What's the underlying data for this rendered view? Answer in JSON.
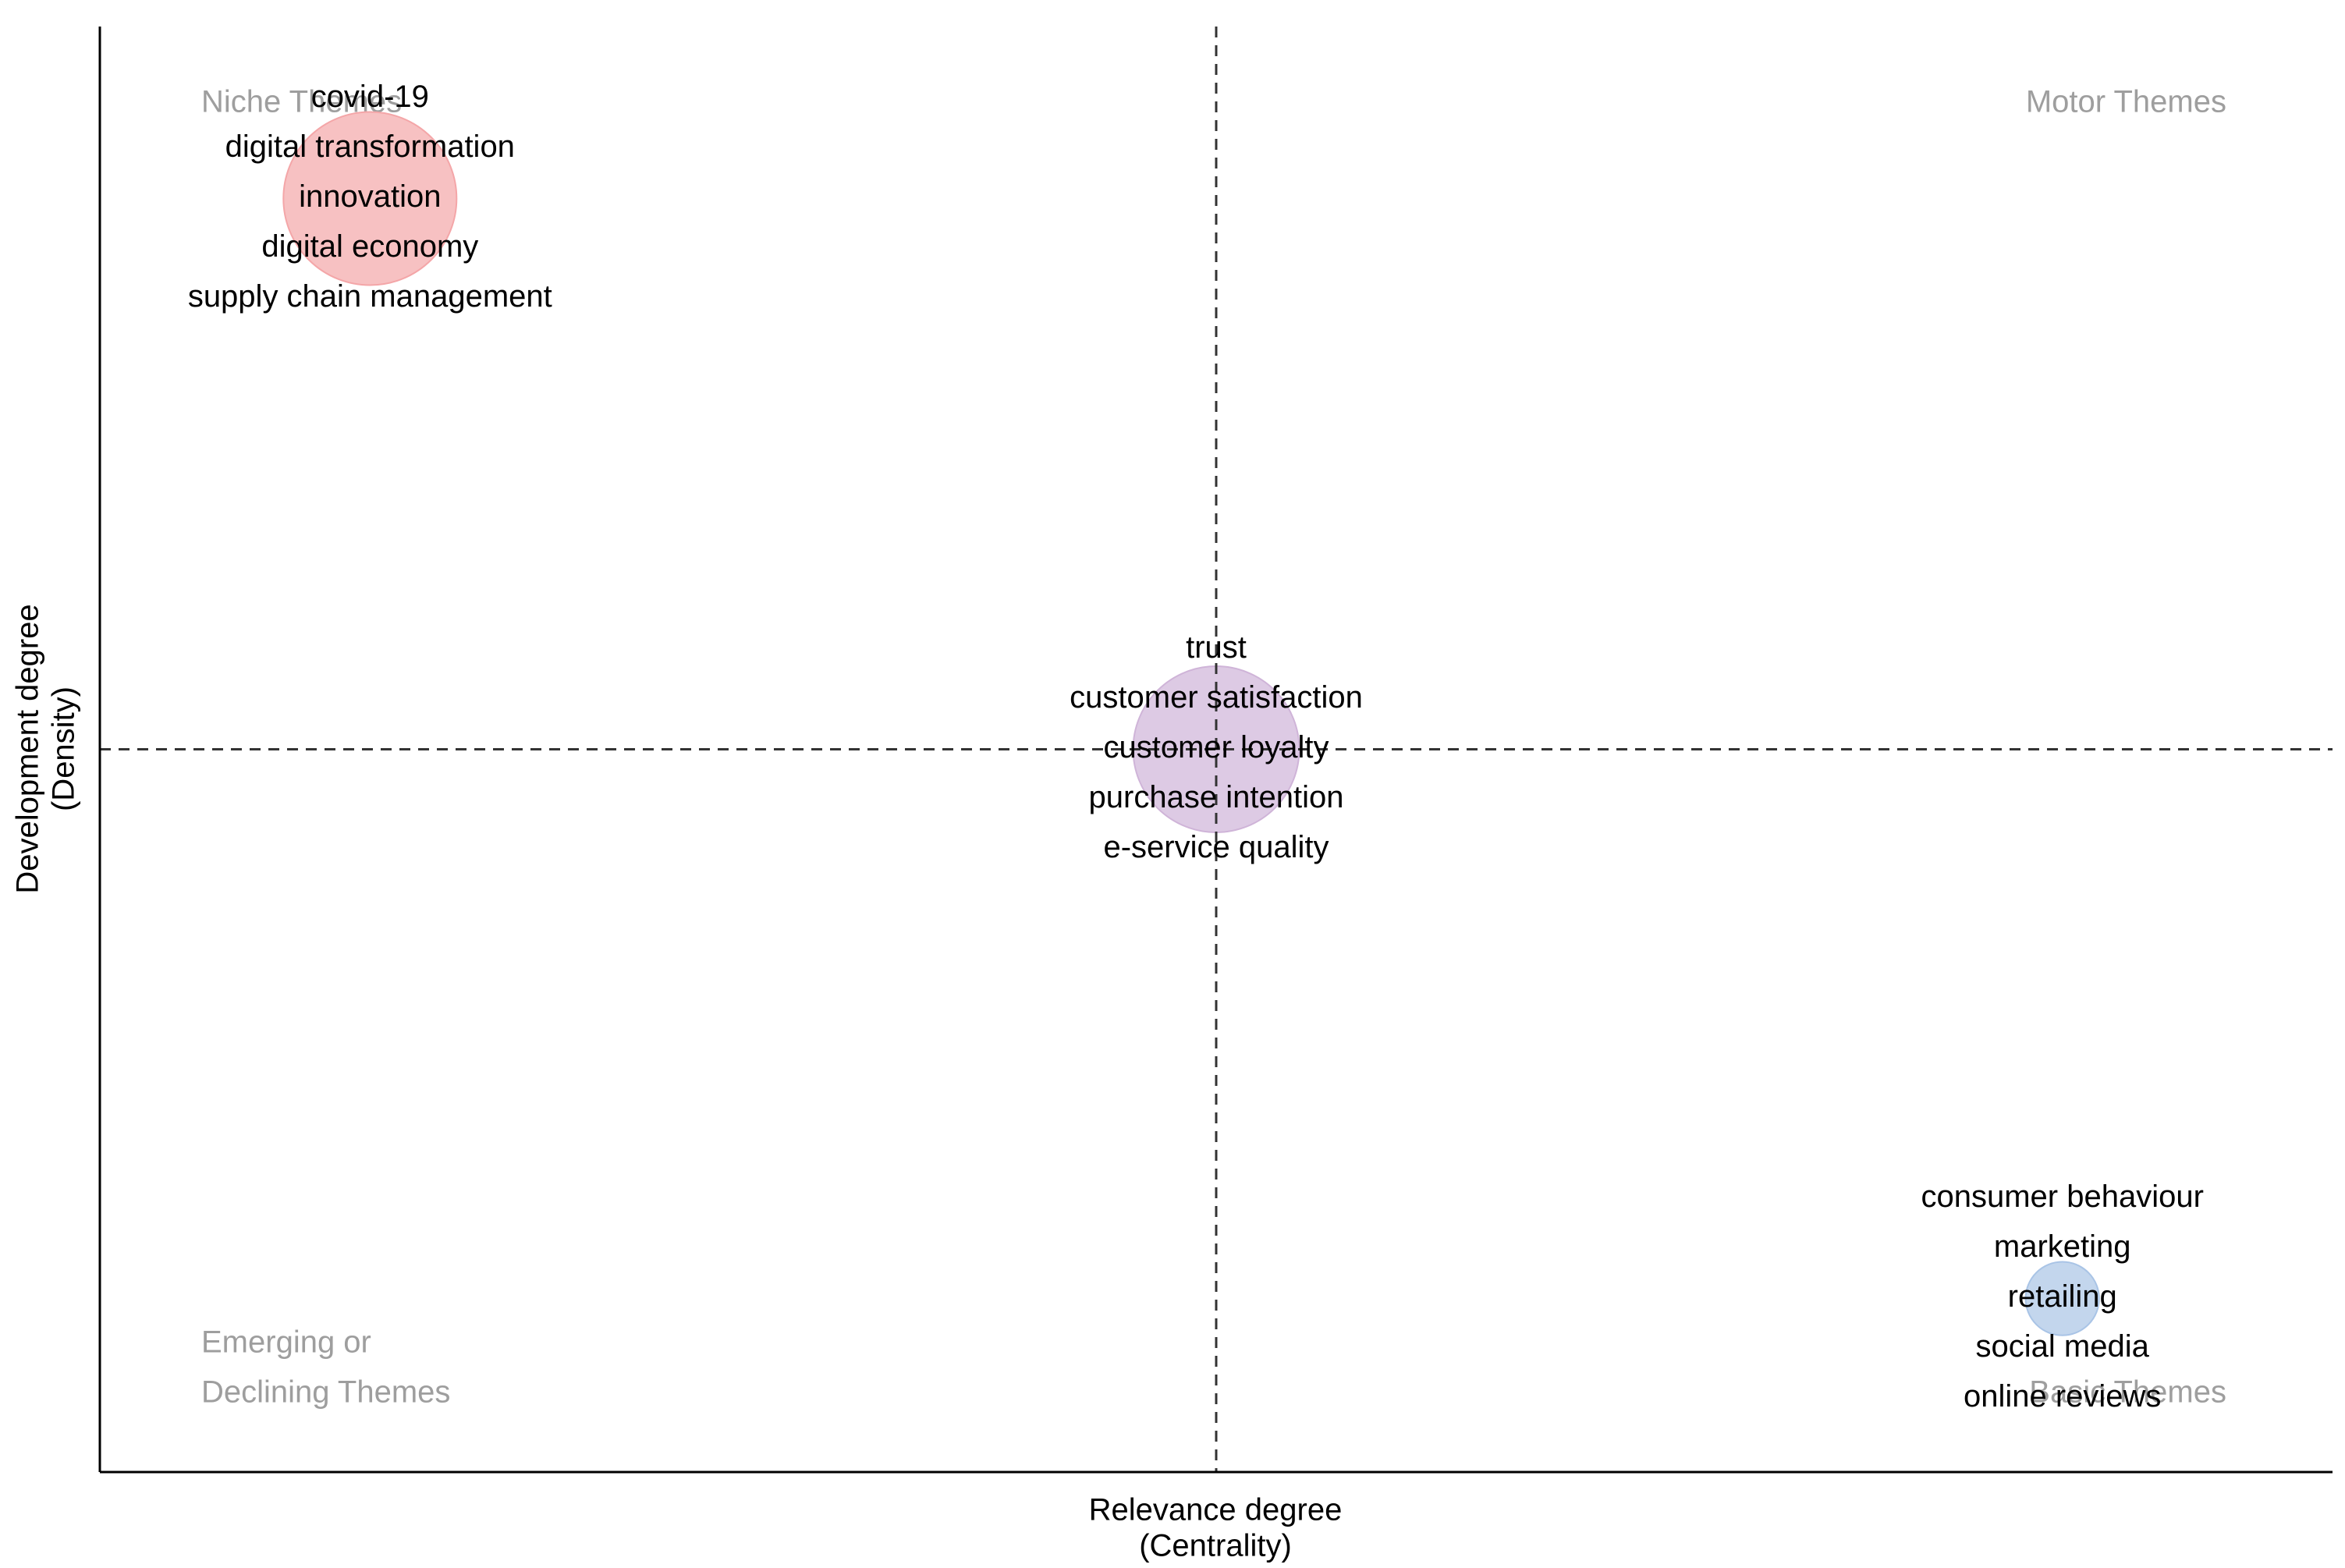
{
  "chart_data": {
    "type": "scatter",
    "title": "",
    "xlabel": "Relevance degree",
    "xlabel_sub": "(Centrality)",
    "ylabel": "Development degree",
    "ylabel_sub": "(Density)",
    "xlim": [
      0,
      1
    ],
    "ylim": [
      0,
      1
    ],
    "reference_lines": {
      "x": 0.5,
      "y": 0.5,
      "style": "dashed"
    },
    "grid": false,
    "quadrant_labels": {
      "top_left": [
        "Niche Themes"
      ],
      "top_right": [
        "Motor Themes"
      ],
      "bottom_left": [
        "Emerging or",
        "Declining Themes"
      ],
      "bottom_right": [
        "Basic Themes"
      ]
    },
    "clusters": [
      {
        "x": 0.121,
        "y": 0.881,
        "size": 1.0,
        "color": "#f4a6a8",
        "keywords": [
          "covid-19",
          "digital transformation",
          "innovation",
          "digital economy",
          "supply chain management"
        ]
      },
      {
        "x": 0.5,
        "y": 0.5,
        "size": 0.92,
        "color": "#cfb4d8",
        "keywords": [
          "trust",
          "customer satisfaction",
          "customer loyalty",
          "purchase intention",
          "e-service quality"
        ]
      },
      {
        "x": 0.879,
        "y": 0.12,
        "size": 0.18,
        "color": "#a9c4e6",
        "keywords": [
          "consumer behaviour",
          "marketing",
          "retailing",
          "social media",
          "online reviews"
        ]
      }
    ]
  }
}
